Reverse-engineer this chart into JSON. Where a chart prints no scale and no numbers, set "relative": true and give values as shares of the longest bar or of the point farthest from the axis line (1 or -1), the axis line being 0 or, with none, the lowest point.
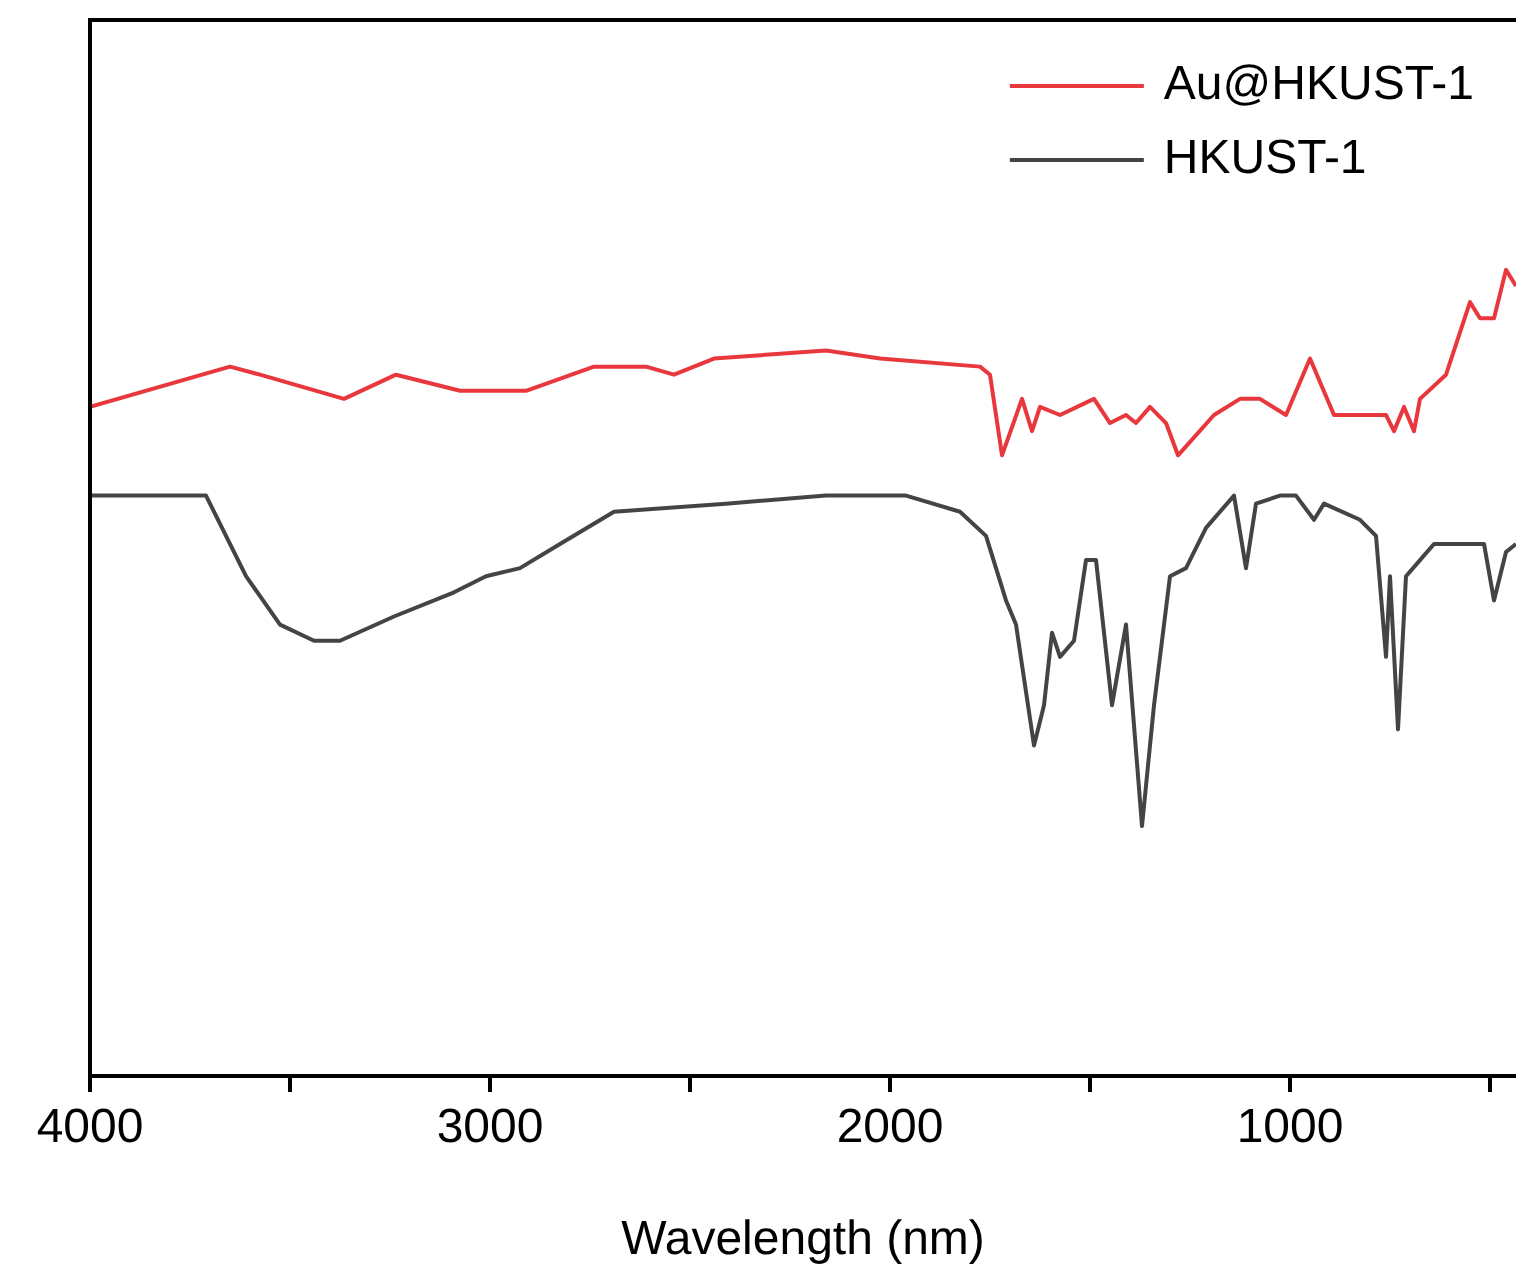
{
  "chart_data": {
    "type": "line",
    "xlabel": "Wavelength (nm)",
    "relative": true,
    "legend": "top right",
    "marker": "none",
    "grid": false,
    "xlim": [
      4000,
      435
    ],
    "xticks": [
      4000,
      {
        "value": 3500,
        "label": null
      },
      3000,
      {
        "value": 2500,
        "label": null
      },
      2000,
      {
        "value": 1500,
        "label": null
      },
      1000,
      {
        "value": 500,
        "label": null
      }
    ],
    "series": [
      {
        "name": "Au@HKUST-1",
        "color": "#e8383d",
        "x": [
          4000,
          3650,
          3575,
          3365,
          3235,
          3075,
          2910,
          2740,
          2610,
          2540,
          2440,
          2160,
          2025,
          1775,
          1750,
          1720,
          1670,
          1645,
          1625,
          1575,
          1490,
          1450,
          1410,
          1385,
          1350,
          1310,
          1280,
          1190,
          1125,
          1075,
          1010,
          950,
          890,
          860,
          760,
          740,
          715,
          690,
          675,
          610,
          550,
          525,
          490,
          460,
          435
        ],
        "values": [
          0.83,
          0.88,
          0.87,
          0.84,
          0.87,
          0.85,
          0.85,
          0.88,
          0.88,
          0.87,
          0.89,
          0.9,
          0.89,
          0.88,
          0.87,
          0.77,
          0.84,
          0.8,
          0.83,
          0.82,
          0.84,
          0.81,
          0.82,
          0.81,
          0.83,
          0.81,
          0.77,
          0.82,
          0.84,
          0.84,
          0.82,
          0.89,
          0.82,
          0.82,
          0.82,
          0.8,
          0.83,
          0.8,
          0.84,
          0.87,
          0.96,
          0.94,
          0.94,
          1.0,
          0.98
        ]
      },
      {
        "name": "HKUST-1",
        "color": "#444444",
        "x": [
          4000,
          3710,
          3610,
          3525,
          3440,
          3375,
          3240,
          3090,
          3010,
          2925,
          2825,
          2690,
          2410,
          2160,
          1960,
          1825,
          1760,
          1710,
          1685,
          1640,
          1615,
          1595,
          1575,
          1540,
          1510,
          1485,
          1445,
          1410,
          1370,
          1340,
          1300,
          1260,
          1210,
          1140,
          1110,
          1085,
          1025,
          985,
          940,
          915,
          825,
          785,
          760,
          750,
          730,
          710,
          675,
          640,
          590,
          515,
          490,
          460,
          435
        ],
        "values": [
          0.72,
          0.72,
          0.62,
          0.56,
          0.54,
          0.54,
          0.57,
          0.6,
          0.62,
          0.63,
          0.66,
          0.7,
          0.71,
          0.72,
          0.72,
          0.7,
          0.67,
          0.59,
          0.56,
          0.41,
          0.46,
          0.55,
          0.52,
          0.54,
          0.64,
          0.64,
          0.46,
          0.56,
          0.31,
          0.46,
          0.62,
          0.63,
          0.68,
          0.72,
          0.63,
          0.71,
          0.72,
          0.72,
          0.69,
          0.71,
          0.69,
          0.67,
          0.52,
          0.62,
          0.43,
          0.62,
          0.64,
          0.66,
          0.66,
          0.66,
          0.59,
          0.65,
          0.66
        ]
      }
    ]
  }
}
